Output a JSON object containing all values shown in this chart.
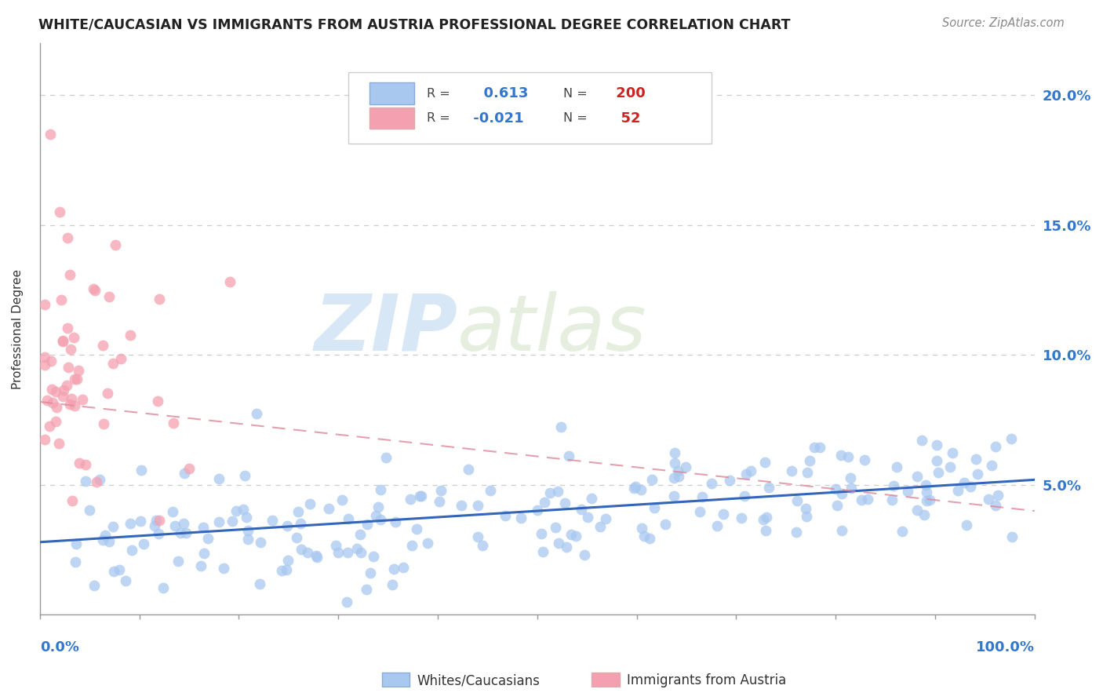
{
  "title": "WHITE/CAUCASIAN VS IMMIGRANTS FROM AUSTRIA PROFESSIONAL DEGREE CORRELATION CHART",
  "source": "Source: ZipAtlas.com",
  "ylabel": "Professional Degree",
  "y_ticks": [
    0.0,
    0.05,
    0.1,
    0.15,
    0.2
  ],
  "y_tick_labels": [
    "",
    "5.0%",
    "10.0%",
    "15.0%",
    "20.0%"
  ],
  "xlim": [
    0.0,
    1.0
  ],
  "ylim": [
    0.0,
    0.22
  ],
  "blue_R": 0.613,
  "blue_N": 200,
  "pink_R": -0.021,
  "pink_N": 52,
  "blue_color": "#a8c8f0",
  "pink_color": "#f5a0b0",
  "blue_line_color": "#3366bb",
  "pink_line_color": "#dd8899",
  "watermark_zip": "ZIP",
  "watermark_atlas": "atlas",
  "legend_label_blue": "Whites/Caucasians",
  "legend_label_pink": "Immigrants from Austria",
  "blue_seed": 42,
  "pink_seed": 7
}
